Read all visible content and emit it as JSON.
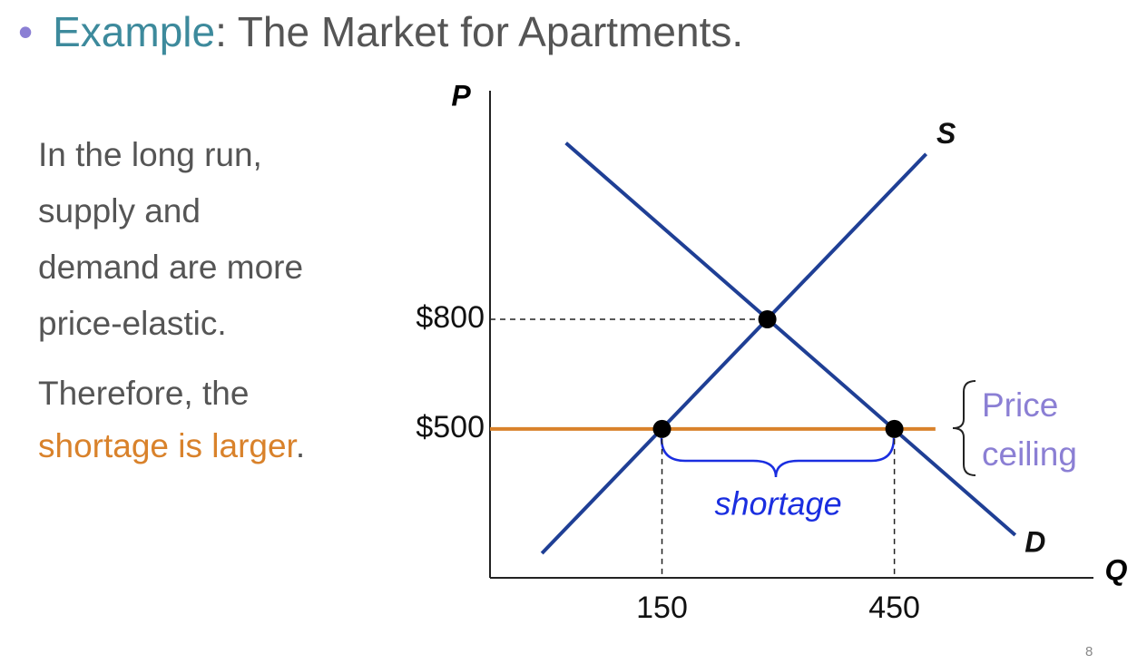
{
  "title": {
    "bullet": "•",
    "highlight": "Example",
    "rest": ": The Market for Apartments."
  },
  "body": {
    "lines": [
      "In the long run,",
      "supply and",
      "demand are more",
      "price-elastic."
    ],
    "paragraph2_start": "Therefore, the",
    "paragraph2_highlight": "shortage is larger",
    "paragraph2_end": "."
  },
  "chart_data": {
    "type": "line",
    "x_label": "Q",
    "y_label": "P",
    "xlim": [
      -72,
      707
    ],
    "ylim": [
      93,
      1425
    ],
    "xticks": [
      150,
      450
    ],
    "yticks": [
      {
        "value": 800,
        "label": "$800"
      },
      {
        "value": 500,
        "label": "$500"
      }
    ],
    "series": [
      {
        "name": "S",
        "color": "#1f3f95",
        "x": [
          -5,
          491
        ],
        "values": [
          160,
          1252
        ]
      },
      {
        "name": "D",
        "color": "#1f3f95",
        "x": [
          26,
          606
        ],
        "values": [
          1282,
          210
        ]
      },
      {
        "name": "Price ceiling",
        "color": "#d9822b",
        "x": [
          -72,
          503
        ],
        "values": [
          500,
          500
        ]
      }
    ],
    "points": {
      "x": [
        286,
        150,
        450
      ],
      "values": [
        800,
        500,
        500
      ]
    },
    "annotation": "shortage"
  },
  "page_number": "8"
}
